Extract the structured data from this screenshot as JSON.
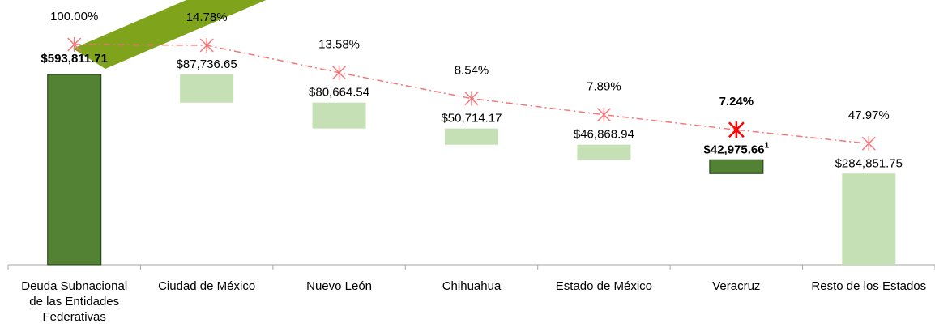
{
  "chart_data": {
    "type": "waterfall",
    "categories": [
      "Deuda Subnacional de las Entidades Federativas",
      "Ciudad de México",
      "Nuevo León",
      "Chihuahua",
      "Estado de México",
      "Veracruz",
      "Resto de los Estados"
    ],
    "values": [
      593811.71,
      87736.65,
      80664.54,
      50714.17,
      46868.94,
      42975.66,
      284851.75
    ],
    "value_labels": [
      "$593,811.71",
      "$87,736.65",
      "$80,664.54",
      "$50,714.17",
      "$46,868.94",
      "$42,975.66",
      "$284,851.75"
    ],
    "footnotes": [
      null,
      null,
      null,
      null,
      null,
      "1",
      null
    ],
    "colors": [
      "#548235",
      "#c5e0b4",
      "#c5e0b4",
      "#c5e0b4",
      "#c5e0b4",
      "#548235",
      "#c5e0b4"
    ],
    "percent": {
      "values": [
        100,
        14.78,
        13.58,
        8.54,
        7.89,
        7.24,
        47.97
      ],
      "value_labels": [
        "100.00%",
        "14.78%",
        "13.58%",
        "8.54%",
        "7.89%",
        "7.24%",
        "47.97%"
      ],
      "color": "#f4777a"
    }
  }
}
